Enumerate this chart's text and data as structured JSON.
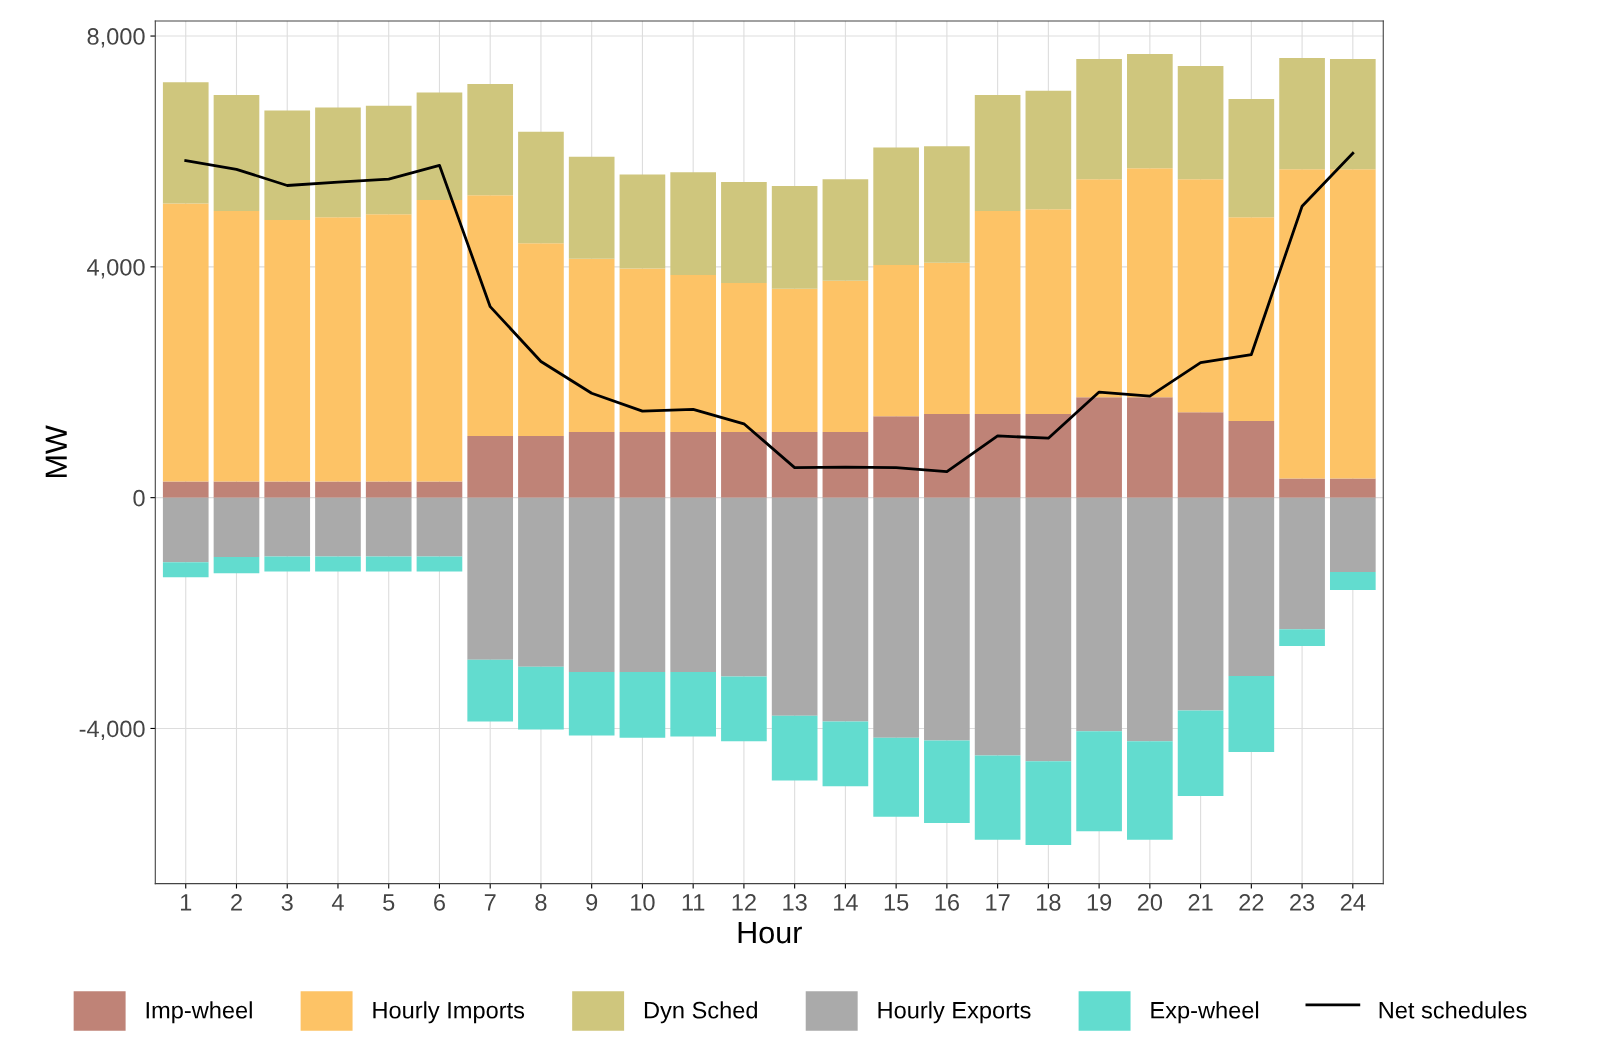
{
  "chart_data": {
    "type": "bar",
    "stacked": true,
    "xlabel": "Hour",
    "ylabel": "MW",
    "categories": [
      "1",
      "2",
      "3",
      "4",
      "5",
      "6",
      "7",
      "8",
      "9",
      "10",
      "11",
      "12",
      "13",
      "14",
      "15",
      "16",
      "17",
      "18",
      "19",
      "20",
      "21",
      "22",
      "23",
      "24"
    ],
    "series": [
      {
        "name": "Imp-wheel",
        "color": "#bf8377",
        "values": [
          280,
          280,
          280,
          280,
          280,
          280,
          1070,
          1070,
          1140,
          1140,
          1140,
          1140,
          1140,
          1140,
          1410,
          1450,
          1450,
          1450,
          1740,
          1740,
          1480,
          1330,
          330,
          330
        ]
      },
      {
        "name": "Hourly Imports",
        "color": "#fdc366",
        "values": [
          4820,
          4690,
          4530,
          4580,
          4630,
          4880,
          4170,
          3340,
          3000,
          2830,
          2720,
          2580,
          2480,
          2620,
          2620,
          2620,
          3520,
          3550,
          3780,
          3970,
          4040,
          3530,
          5360,
          5360
        ]
      },
      {
        "name": "Dyn Sched",
        "color": "#cfc67d",
        "values": [
          2100,
          2010,
          1900,
          1900,
          1880,
          1860,
          1930,
          1930,
          1770,
          1630,
          1780,
          1750,
          1780,
          1760,
          2040,
          2020,
          2010,
          2050,
          2080,
          1980,
          1960,
          2050,
          1930,
          1910
        ]
      },
      {
        "name": "Hourly Exports",
        "color": "#aaaaaa",
        "values": [
          -1120,
          -1030,
          -1020,
          -1020,
          -1020,
          -1020,
          -2810,
          -2930,
          -3020,
          -3020,
          -3020,
          -3100,
          -3780,
          -3880,
          -4160,
          -4210,
          -4470,
          -4570,
          -4050,
          -4220,
          -3690,
          -3090,
          -2280,
          -1290
        ]
      },
      {
        "name": "Exp-wheel",
        "color": "#62dccf",
        "values": [
          -260,
          -280,
          -260,
          -260,
          -260,
          -260,
          -1070,
          -1090,
          -1100,
          -1140,
          -1120,
          -1120,
          -1120,
          -1120,
          -1370,
          -1430,
          -1460,
          -1450,
          -1730,
          -1710,
          -1480,
          -1320,
          -290,
          -310
        ]
      },
      {
        "name": "Net schedules",
        "type": "line",
        "color": "#000000",
        "values": [
          5840,
          5690,
          5410,
          5470,
          5520,
          5760,
          3310,
          2360,
          1810,
          1500,
          1530,
          1280,
          520,
          530,
          520,
          450,
          1070,
          1030,
          1830,
          1760,
          2340,
          2480,
          5050,
          5970
        ]
      }
    ],
    "ylim": [
      -6690,
      8260
    ],
    "yticks": [
      {
        "value": -4000,
        "label": "-4,000"
      },
      0,
      {
        "value": 4000,
        "label": "4,000"
      },
      {
        "value": 8000,
        "label": "8,000"
      }
    ],
    "grid": true,
    "legend": "bottom"
  }
}
